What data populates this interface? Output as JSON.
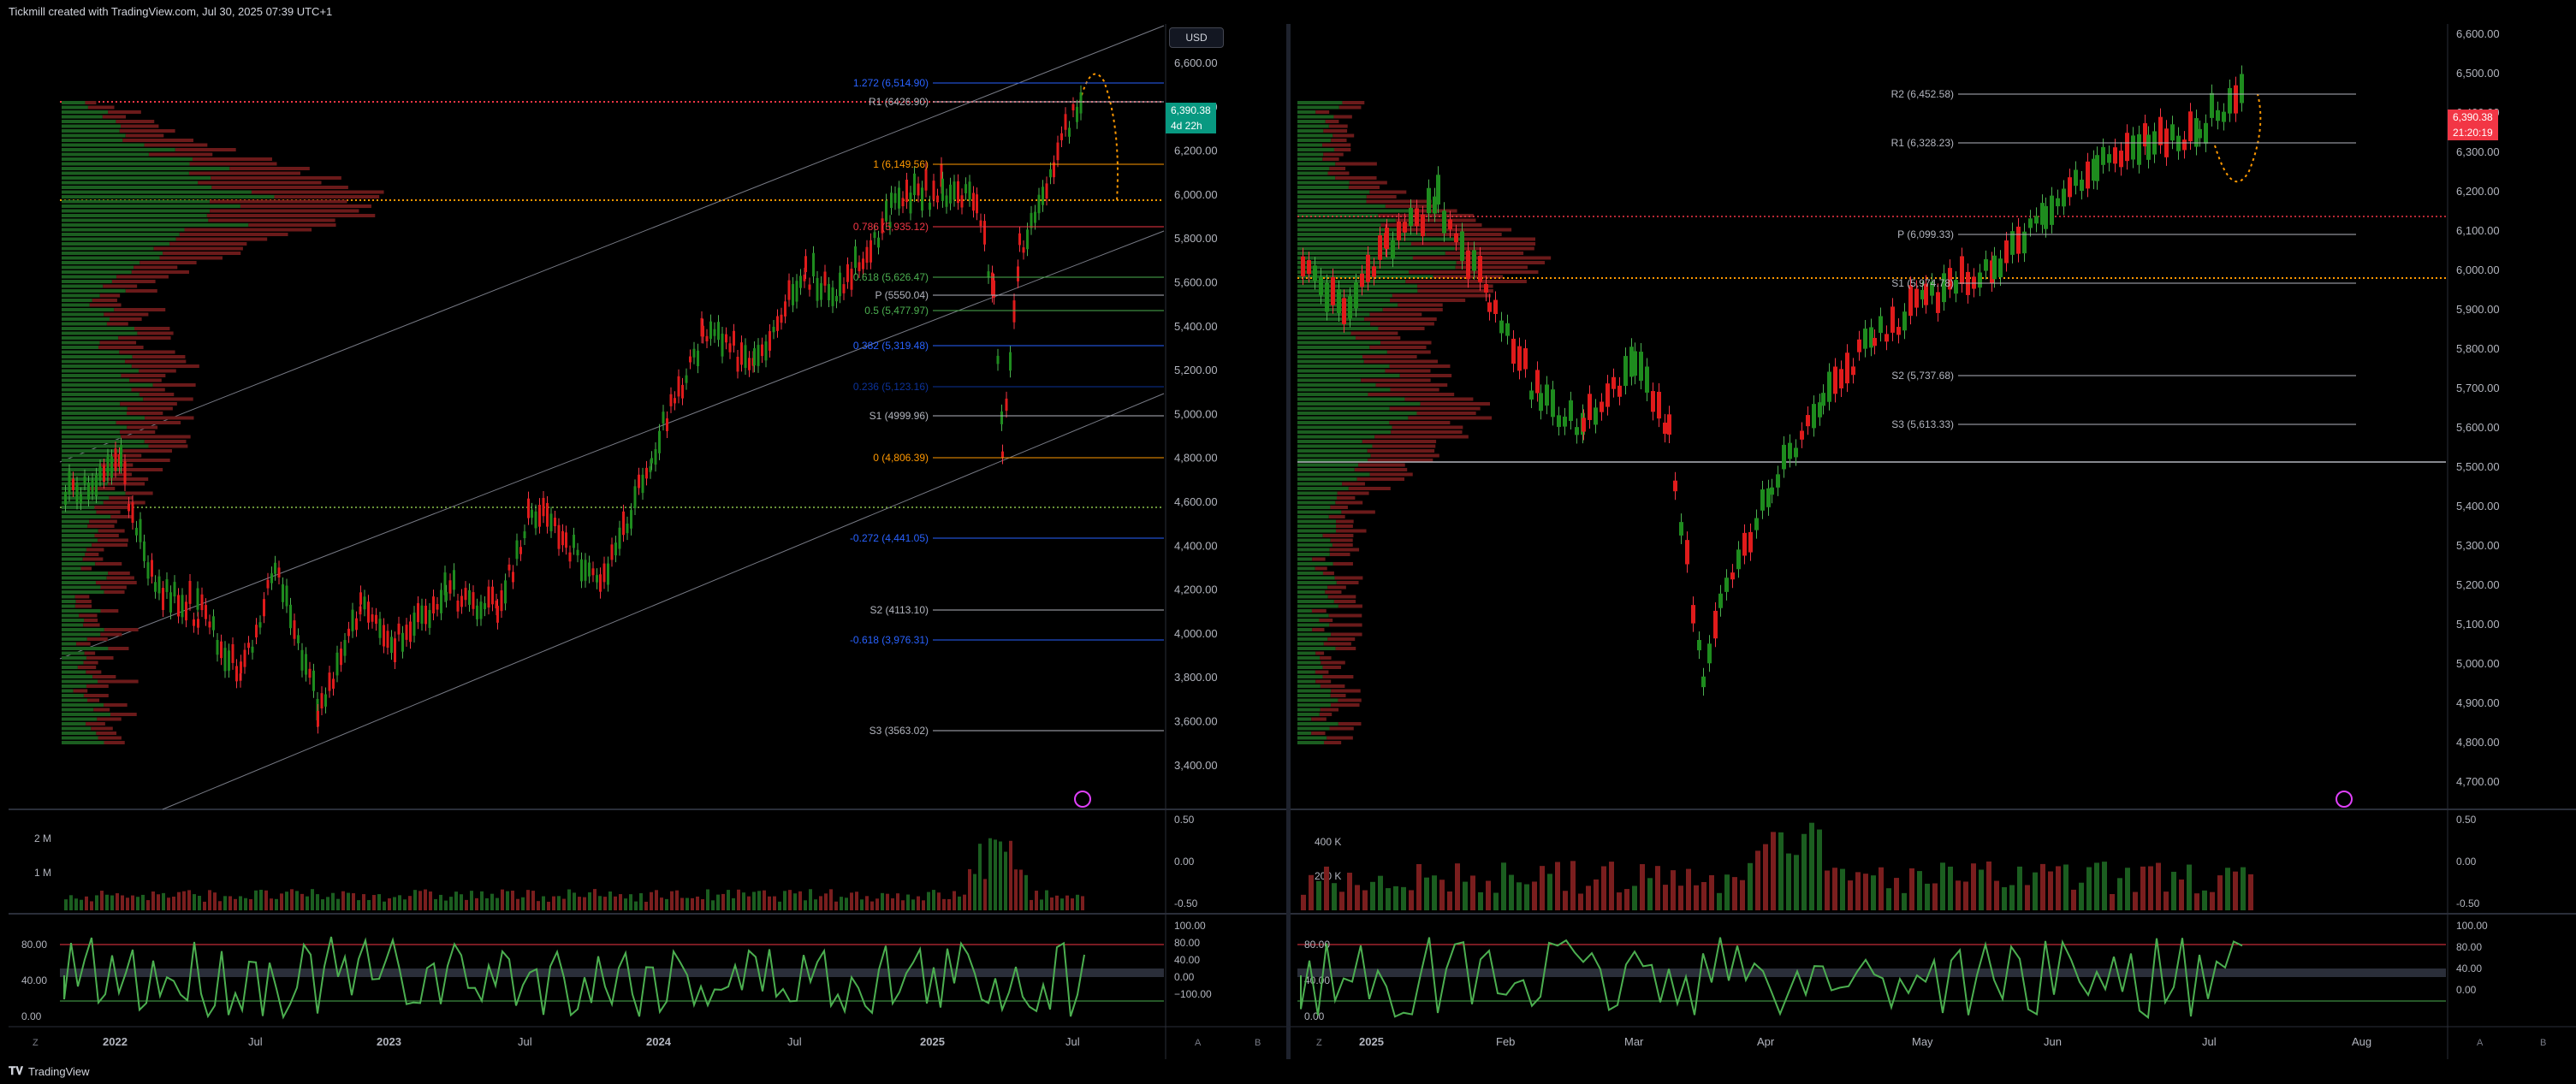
{
  "header": {
    "title": "Tickmill created with TradingView.com, Jul 30, 2025 07:39 UTC+1"
  },
  "footer": {
    "logo_text": "TradingView"
  },
  "left": {
    "currency_button": "USD",
    "price_badge": {
      "price": "6,390.38",
      "countdown": "4d 22h"
    },
    "price_axis": [
      "6,600.00",
      "6,400.00",
      "6,200.00",
      "6,000.00",
      "5,800.00",
      "5,600.00",
      "5,400.00",
      "5,200.00",
      "5,000.00",
      "4,800.00",
      "4,600.00",
      "4,400.00",
      "4,200.00",
      "4,000.00",
      "3,800.00",
      "3,600.00",
      "3,400.00"
    ],
    "levels": [
      {
        "label": "1.272 (6,514.90)",
        "color": "#2962ff"
      },
      {
        "label": "R1 (6426.90)",
        "color": "#b2b5be"
      },
      {
        "label": "1 (6,149.56)",
        "color": "#ff9800"
      },
      {
        "label": "0.786 (5,935.12)",
        "color": "#f23645"
      },
      {
        "label": "0.618 (5,626.47)",
        "color": "#4caf50"
      },
      {
        "label": "P (5550.04)",
        "color": "#b2b5be"
      },
      {
        "label": "0.5 (5,477.97)",
        "color": "#4caf50"
      },
      {
        "label": "0.382 (5,319.48)",
        "color": "#2962ff"
      },
      {
        "label": "0.236 (5,123.16)",
        "color": "#0c3299"
      },
      {
        "label": "S1 (4999.96)",
        "color": "#b2b5be"
      },
      {
        "label": "0 (4,806.39)",
        "color": "#ff9800"
      },
      {
        "label": "-0.272 (4,441.05)",
        "color": "#2962ff"
      },
      {
        "label": "S2 (4113.10)",
        "color": "#b2b5be"
      },
      {
        "label": "-0.618 (3,976.31)",
        "color": "#2962ff"
      },
      {
        "label": "S3 (3563.02)",
        "color": "#b2b5be"
      }
    ],
    "volume_axis": [
      "2 M",
      "1 M"
    ],
    "volume_right_axis": [
      "0.50",
      "0.00",
      "-0.50"
    ],
    "osc_left_axis": [
      "80.00",
      "40.00",
      "0.00"
    ],
    "osc_right_axis": [
      "100.00",
      "80.00",
      "40.00",
      "0.00",
      "−100.00"
    ],
    "time_axis": [
      "2022",
      "Jul",
      "2023",
      "Jul",
      "2024",
      "Jul",
      "2025",
      "Jul"
    ]
  },
  "right": {
    "price_badge": {
      "price": "6,390.38",
      "countdown": "21:20:19"
    },
    "price_axis": [
      "6,600.00",
      "6,500.00",
      "6,400.00",
      "6,300.00",
      "6,200.00",
      "6,100.00",
      "6,000.00",
      "5,900.00",
      "5,800.00",
      "5,700.00",
      "5,600.00",
      "5,500.00",
      "5,400.00",
      "5,300.00",
      "5,200.00",
      "5,100.00",
      "5,000.00",
      "4,900.00",
      "4,800.00",
      "4,700.00"
    ],
    "levels": [
      {
        "label": "R2 (6,452.58)",
        "color": "#b2b5be"
      },
      {
        "label": "R1 (6,328.23)",
        "color": "#b2b5be"
      },
      {
        "label": "P (6,099.33)",
        "color": "#b2b5be"
      },
      {
        "label": "S1 (5,974.78)",
        "color": "#b2b5be"
      },
      {
        "label": "S2 (5,737.68)",
        "color": "#b2b5be"
      },
      {
        "label": "S3 (5,613.33)",
        "color": "#b2b5be"
      }
    ],
    "volume_axis": [
      "400 K",
      "200 K"
    ],
    "volume_right_axis": [
      "0.50",
      "0.00",
      "-0.50"
    ],
    "osc_left_axis": [
      "80.00",
      "40.00",
      "0.00"
    ],
    "osc_right_axis": [
      "100.00",
      "80.00",
      "40.00",
      "0.00"
    ],
    "time_axis": [
      "2025",
      "Feb",
      "Mar",
      "Apr",
      "May",
      "Jun",
      "Jul",
      "Aug"
    ]
  },
  "colors": {
    "up": "#26a69a",
    "candle_up": "#1e8c1e",
    "candle_down": "#e01b1b",
    "bg": "#000000",
    "grid": "#1e222d"
  },
  "icons": {
    "zoom": "Z",
    "auto": "A",
    "log": "B"
  }
}
